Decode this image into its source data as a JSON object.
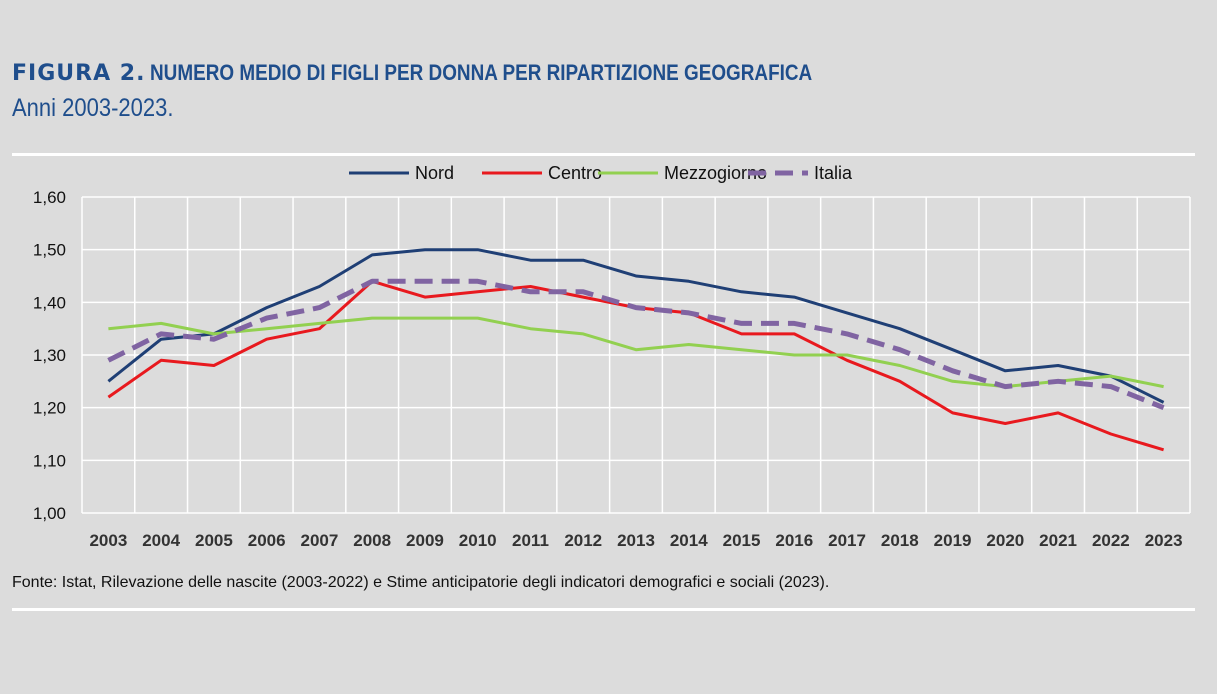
{
  "header": {
    "figure_label": "FIGURA 2.",
    "title": "NUMERO MEDIO DI FIGLI PER DONNA PER RIPARTIZIONE GEOGRAFICA",
    "subtitle": "Anni 2003-2023."
  },
  "footer": {
    "source": "Fonte: Istat, Rilevazione delle nascite (2003-2022) e Stime anticipatorie degli indicatori demografici e sociali (2023)."
  },
  "chart_data": {
    "type": "line",
    "x": [
      "2003",
      "2004",
      "2005",
      "2006",
      "2007",
      "2008",
      "2009",
      "2010",
      "2011",
      "2012",
      "2013",
      "2014",
      "2015",
      "2016",
      "2017",
      "2018",
      "2019",
      "2020",
      "2021",
      "2022",
      "2023"
    ],
    "ylim": [
      1.0,
      1.6
    ],
    "yticks": [
      "1,00",
      "1,10",
      "1,20",
      "1,30",
      "1,40",
      "1,50",
      "1,60"
    ],
    "grid": true,
    "legend_position": "top-center",
    "series": [
      {
        "name": "Nord",
        "color": "#1f3f75",
        "dashed": false,
        "values": [
          1.25,
          1.33,
          1.34,
          1.39,
          1.43,
          1.49,
          1.5,
          1.5,
          1.48,
          1.48,
          1.45,
          1.44,
          1.42,
          1.41,
          1.38,
          1.35,
          1.31,
          1.27,
          1.28,
          1.26,
          1.21
        ]
      },
      {
        "name": "Centro",
        "color": "#e8191e",
        "dashed": false,
        "values": [
          1.22,
          1.29,
          1.28,
          1.33,
          1.35,
          1.44,
          1.41,
          1.42,
          1.43,
          1.41,
          1.39,
          1.38,
          1.34,
          1.34,
          1.29,
          1.25,
          1.19,
          1.17,
          1.19,
          1.15,
          1.12
        ]
      },
      {
        "name": "Mezzogiorno",
        "color": "#92d050",
        "dashed": false,
        "values": [
          1.35,
          1.36,
          1.34,
          1.35,
          1.36,
          1.37,
          1.37,
          1.37,
          1.35,
          1.34,
          1.31,
          1.32,
          1.31,
          1.3,
          1.3,
          1.28,
          1.25,
          1.24,
          1.25,
          1.26,
          1.24
        ]
      },
      {
        "name": "Italia",
        "color": "#8064a2",
        "dashed": true,
        "values": [
          1.29,
          1.34,
          1.33,
          1.37,
          1.39,
          1.44,
          1.44,
          1.44,
          1.42,
          1.42,
          1.39,
          1.38,
          1.36,
          1.36,
          1.34,
          1.31,
          1.27,
          1.24,
          1.25,
          1.24,
          1.2
        ]
      }
    ]
  }
}
